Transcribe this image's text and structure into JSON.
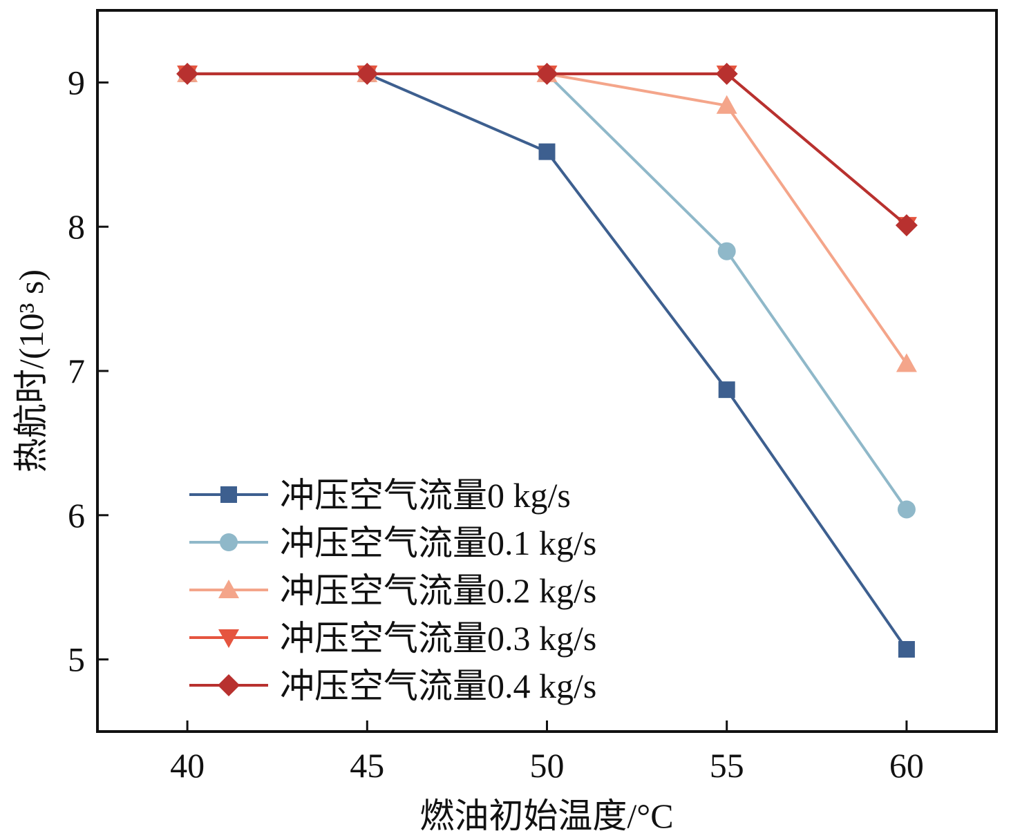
{
  "chart_data": {
    "type": "line",
    "title": "",
    "xlabel": "燃油初始温度/°C",
    "ylabel": "热航时/(10³ s)",
    "x": [
      40,
      45,
      50,
      55,
      60
    ],
    "xlim": [
      37.5,
      62.5
    ],
    "ylim": [
      4.5,
      9.5
    ],
    "xticks": [
      "40",
      "45",
      "50",
      "55",
      "60"
    ],
    "yticks": [
      "5",
      "6",
      "7",
      "8",
      "9"
    ],
    "grid": false,
    "legend_position": "bottom-left",
    "series": [
      {
        "name": "冲压空气流量0 kg/s",
        "color": "#3d5f8f",
        "marker": "square",
        "values": [
          9.06,
          9.06,
          8.52,
          6.87,
          5.07
        ]
      },
      {
        "name": "冲压空气流量0.1 kg/s",
        "color": "#8fb8c9",
        "marker": "circle",
        "values": [
          9.06,
          9.06,
          9.06,
          7.83,
          6.04
        ]
      },
      {
        "name": "冲压空气流量0.2 kg/s",
        "color": "#f4a58a",
        "marker": "triangle-up",
        "values": [
          9.06,
          9.06,
          9.06,
          8.84,
          7.05
        ]
      },
      {
        "name": "冲压空气流量0.3 kg/s",
        "color": "#e5553f",
        "marker": "triangle-down",
        "values": [
          9.06,
          9.06,
          9.06,
          9.06,
          8.01
        ]
      },
      {
        "name": "冲压空气流量0.4 kg/s",
        "color": "#b8312f",
        "marker": "diamond",
        "values": [
          9.06,
          9.06,
          9.06,
          9.06,
          8.01
        ]
      }
    ]
  }
}
